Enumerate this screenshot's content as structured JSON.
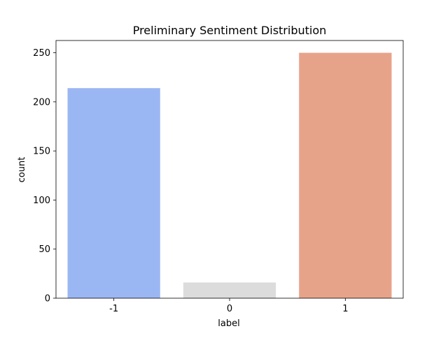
{
  "chart_data": {
    "type": "bar",
    "title": "Preliminary Sentiment Distribution",
    "xlabel": "label",
    "ylabel": "count",
    "categories": [
      "-1",
      "0",
      "1"
    ],
    "values": [
      214,
      16,
      250
    ],
    "colors": [
      "#9bb7f3",
      "#dcdcdc",
      "#e7a38a"
    ],
    "ylim": [
      0,
      262.5
    ],
    "yticks": [
      0,
      50,
      100,
      150,
      200,
      250
    ],
    "grid": false,
    "legend": "none"
  }
}
